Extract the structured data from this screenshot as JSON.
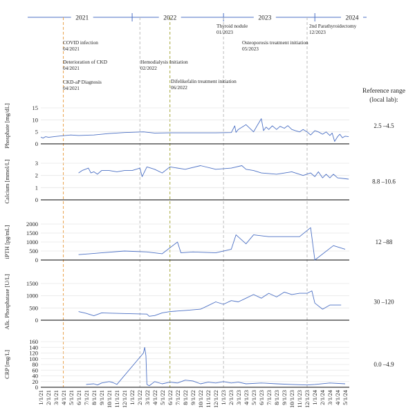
{
  "chart_data": {
    "type": "line",
    "timeline": {
      "years": [
        "2021",
        "2022",
        "2023",
        "2024"
      ],
      "events": [
        {
          "label": "COVID infection",
          "date_label": "04/2021",
          "date": "2021-04-01",
          "color": "#e8a04a",
          "dashed_line": true
        },
        {
          "label": "Deterioration of CKD",
          "date_label": "04/2021",
          "date": "2021-04-01",
          "color": "",
          "dashed_line": false
        },
        {
          "label": "CKD-aP Diagnosis",
          "date_label": "04/2021",
          "date": "2021-04-01",
          "color": "",
          "dashed_line": false
        },
        {
          "label": "Hemodialysis Initiation",
          "date_label": "02/2022",
          "date": "2022-02-01",
          "color": "#bbbbbb",
          "dashed_line": true
        },
        {
          "label": "Difelikefalin treatment initiation",
          "date_label": "06/2022",
          "date": "2022-06-01",
          "color": "#a6a83a",
          "dashed_line": true
        },
        {
          "label": "Thyroid nodule",
          "date_label": "01/2023",
          "date": "2023-01-01",
          "color": "#bbbbbb",
          "dashed_line": true
        },
        {
          "label": "Osteoporosis treatment initiation",
          "date_label": "05/2023",
          "date": "2023-05-01",
          "color": "",
          "dashed_line": false
        },
        {
          "label": "2nd Parathyroidectomy",
          "date_label": "12/2023",
          "date": "2023-12-01",
          "color": "#bbbbbb",
          "dashed_line": true
        }
      ]
    },
    "x_ticks": [
      "1/1/21",
      "2/1/21",
      "3/1/21",
      "4/1/21",
      "5/1/21",
      "6/1/21",
      "7/1/21",
      "8/1/21",
      "9/1/21",
      "10/1/21",
      "11/1/21",
      "12/1/21",
      "1/1/22",
      "2/1/22",
      "3/1/22",
      "4/1/22",
      "5/1/22",
      "6/1/22",
      "7/1/22",
      "8/1/22",
      "9/1/22",
      "10/1/22",
      "11/1/22",
      "12/1/22",
      "1/1/23",
      "2/1/23",
      "3/1/23",
      "4/1/23",
      "5/1/23",
      "6/1/23",
      "7/1/23",
      "8/1/23",
      "9/1/23",
      "10/1/23",
      "11/1/23",
      "12/1/23",
      "1/1/24",
      "2/1/24",
      "3/1/24",
      "4/1/24",
      "5/1/24"
    ],
    "reference_header": "Reference range\n(local lab):",
    "line_color": "#4a6fc4",
    "panels": [
      {
        "ylabel": "Phosphate [mg/dL]",
        "yticks": [
          0,
          5,
          10,
          15
        ],
        "ylim": [
          0,
          15
        ],
        "reference_range": "2.5 –4.5",
        "series": [
          [
            "2021-01-01",
            2.8
          ],
          [
            "2021-01-10",
            2.4
          ],
          [
            "2021-01-20",
            3.0
          ],
          [
            "2021-02-01",
            2.7
          ],
          [
            "2021-02-15",
            2.9
          ],
          [
            "2021-03-01",
            3.1
          ],
          [
            "2021-04-01",
            3.4
          ],
          [
            "2021-05-01",
            3.7
          ],
          [
            "2021-06-01",
            3.5
          ],
          [
            "2021-08-01",
            3.7
          ],
          [
            "2021-10-01",
            4.3
          ],
          [
            "2021-12-01",
            4.7
          ],
          [
            "2022-02-15",
            5.0
          ],
          [
            "2022-04-01",
            4.5
          ],
          [
            "2022-06-01",
            4.6
          ],
          [
            "2022-09-01",
            4.6
          ],
          [
            "2022-12-01",
            4.6
          ],
          [
            "2023-02-01",
            4.7
          ],
          [
            "2023-02-15",
            7.5
          ],
          [
            "2023-02-20",
            4.8
          ],
          [
            "2023-03-01",
            6.0
          ],
          [
            "2023-04-01",
            8.0
          ],
          [
            "2023-05-01",
            5.0
          ],
          [
            "2023-05-15",
            7.5
          ],
          [
            "2023-06-01",
            10.5
          ],
          [
            "2023-06-10",
            5.5
          ],
          [
            "2023-06-20",
            7.0
          ],
          [
            "2023-07-01",
            6.0
          ],
          [
            "2023-07-15",
            7.5
          ],
          [
            "2023-08-01",
            6.0
          ],
          [
            "2023-08-15",
            7.3
          ],
          [
            "2023-09-01",
            6.5
          ],
          [
            "2023-09-15",
            7.6
          ],
          [
            "2023-10-01",
            6.0
          ],
          [
            "2023-10-15",
            5.5
          ],
          [
            "2023-11-01",
            5.0
          ],
          [
            "2023-11-15",
            6.0
          ],
          [
            "2023-12-01",
            5.0
          ],
          [
            "2023-12-15",
            3.7
          ],
          [
            "2024-01-01",
            5.5
          ],
          [
            "2024-01-15",
            5.0
          ],
          [
            "2024-02-01",
            4.0
          ],
          [
            "2024-02-15",
            5.0
          ],
          [
            "2024-03-01",
            3.5
          ],
          [
            "2024-03-10",
            4.5
          ],
          [
            "2024-03-20",
            1.0
          ],
          [
            "2024-04-01",
            3.0
          ],
          [
            "2024-04-10",
            4.0
          ],
          [
            "2024-04-20",
            2.5
          ],
          [
            "2024-05-01",
            3.2
          ],
          [
            "2024-05-15",
            3.0
          ]
        ]
      },
      {
        "ylabel": "Calcium [mmol/L]",
        "yticks": [
          0,
          1,
          2,
          3
        ],
        "ylim": [
          0,
          3
        ],
        "reference_range": "8.8 –10.6",
        "series": [
          [
            "2021-06-01",
            2.2
          ],
          [
            "2021-06-15",
            2.4
          ],
          [
            "2021-07-10",
            2.6
          ],
          [
            "2021-07-20",
            2.2
          ],
          [
            "2021-08-01",
            2.3
          ],
          [
            "2021-08-15",
            2.1
          ],
          [
            "2021-09-01",
            2.4
          ],
          [
            "2021-10-01",
            2.4
          ],
          [
            "2021-11-01",
            2.3
          ],
          [
            "2021-12-01",
            2.4
          ],
          [
            "2022-01-01",
            2.4
          ],
          [
            "2022-02-01",
            2.6
          ],
          [
            "2022-02-10",
            1.9
          ],
          [
            "2022-03-01",
            2.7
          ],
          [
            "2022-04-01",
            2.5
          ],
          [
            "2022-05-01",
            2.2
          ],
          [
            "2022-06-01",
            2.7
          ],
          [
            "2022-08-01",
            2.5
          ],
          [
            "2022-10-01",
            2.8
          ],
          [
            "2022-12-01",
            2.5
          ],
          [
            "2023-02-01",
            2.6
          ],
          [
            "2023-03-15",
            2.8
          ],
          [
            "2023-04-01",
            2.5
          ],
          [
            "2023-05-01",
            2.4
          ],
          [
            "2023-06-01",
            2.2
          ],
          [
            "2023-08-01",
            2.1
          ],
          [
            "2023-10-01",
            2.3
          ],
          [
            "2023-11-15",
            2.0
          ],
          [
            "2023-12-15",
            2.2
          ],
          [
            "2024-01-01",
            1.9
          ],
          [
            "2024-01-15",
            2.3
          ],
          [
            "2024-02-01",
            1.8
          ],
          [
            "2024-02-15",
            2.1
          ],
          [
            "2024-03-01",
            1.8
          ],
          [
            "2024-03-15",
            2.1
          ],
          [
            "2024-04-01",
            1.8
          ],
          [
            "2024-05-15",
            1.7
          ]
        ]
      },
      {
        "ylabel": "iPTH [pg/mL]",
        "yticks": [
          0,
          500,
          1000,
          1500,
          2000
        ],
        "ylim": [
          0,
          2000
        ],
        "reference_range": "12 –88",
        "series": [
          [
            "2021-06-01",
            300
          ],
          [
            "2021-09-01",
            400
          ],
          [
            "2021-12-01",
            500
          ],
          [
            "2022-03-01",
            450
          ],
          [
            "2022-05-01",
            350
          ],
          [
            "2022-07-01",
            1000
          ],
          [
            "2022-07-15",
            400
          ],
          [
            "2022-09-01",
            450
          ],
          [
            "2022-12-01",
            400
          ],
          [
            "2023-02-01",
            600
          ],
          [
            "2023-02-20",
            1400
          ],
          [
            "2023-04-01",
            900
          ],
          [
            "2023-05-01",
            1400
          ],
          [
            "2023-07-01",
            1300
          ],
          [
            "2023-09-01",
            1300
          ],
          [
            "2023-11-01",
            1300
          ],
          [
            "2023-12-15",
            1800
          ],
          [
            "2024-01-01",
            0
          ],
          [
            "2024-03-15",
            800
          ],
          [
            "2024-05-01",
            600
          ]
        ]
      },
      {
        "ylabel": "Alk. Phosphatase [U/L]",
        "yticks": [
          0,
          500,
          1000,
          1500
        ],
        "ylim": [
          0,
          1500
        ],
        "reference_range": "30 –120",
        "series": [
          [
            "2021-06-01",
            350
          ],
          [
            "2021-07-01",
            280
          ],
          [
            "2021-08-01",
            180
          ],
          [
            "2021-09-01",
            300
          ],
          [
            "2021-10-01",
            290
          ],
          [
            "2022-03-01",
            250
          ],
          [
            "2022-03-10",
            160
          ],
          [
            "2022-04-01",
            190
          ],
          [
            "2022-05-01",
            300
          ],
          [
            "2022-06-01",
            350
          ],
          [
            "2022-08-01",
            400
          ],
          [
            "2022-10-01",
            450
          ],
          [
            "2022-11-01",
            600
          ],
          [
            "2022-12-01",
            750
          ],
          [
            "2023-01-01",
            650
          ],
          [
            "2023-02-01",
            800
          ],
          [
            "2023-03-01",
            750
          ],
          [
            "2023-04-01",
            900
          ],
          [
            "2023-05-01",
            1050
          ],
          [
            "2023-06-01",
            900
          ],
          [
            "2023-07-01",
            1100
          ],
          [
            "2023-08-01",
            950
          ],
          [
            "2023-09-01",
            1150
          ],
          [
            "2023-10-01",
            1050
          ],
          [
            "2023-11-01",
            1100
          ],
          [
            "2023-12-01",
            1100
          ],
          [
            "2023-12-20",
            1200
          ],
          [
            "2024-01-01",
            700
          ],
          [
            "2024-02-01",
            450
          ],
          [
            "2024-03-01",
            620
          ],
          [
            "2024-04-15",
            620
          ]
        ]
      },
      {
        "ylabel": "CRP [mg/L]",
        "yticks": [
          0,
          20,
          40,
          60,
          80,
          100,
          120,
          140,
          160
        ],
        "ylim": [
          0,
          160
        ],
        "reference_range": "0.0 –4.9",
        "series": [
          [
            "2021-07-01",
            10
          ],
          [
            "2021-08-01",
            12
          ],
          [
            "2021-08-15",
            8
          ],
          [
            "2021-09-01",
            15
          ],
          [
            "2021-10-01",
            20
          ],
          [
            "2021-10-15",
            17
          ],
          [
            "2021-11-01",
            10
          ],
          [
            "2022-02-15",
            120
          ],
          [
            "2022-02-20",
            140
          ],
          [
            "2022-02-25",
            110
          ],
          [
            "2022-03-01",
            10
          ],
          [
            "2022-03-10",
            5
          ],
          [
            "2022-04-01",
            20
          ],
          [
            "2022-05-01",
            12
          ],
          [
            "2022-06-01",
            18
          ],
          [
            "2022-07-01",
            15
          ],
          [
            "2022-08-01",
            25
          ],
          [
            "2022-09-01",
            22
          ],
          [
            "2022-10-01",
            12
          ],
          [
            "2022-11-01",
            18
          ],
          [
            "2022-12-01",
            15
          ],
          [
            "2023-01-01",
            20
          ],
          [
            "2023-02-01",
            15
          ],
          [
            "2023-03-01",
            18
          ],
          [
            "2023-04-01",
            12
          ],
          [
            "2023-06-01",
            15
          ],
          [
            "2023-08-01",
            12
          ],
          [
            "2023-10-01",
            10
          ],
          [
            "2023-12-01",
            8
          ],
          [
            "2024-01-01",
            10
          ],
          [
            "2024-03-01",
            15
          ],
          [
            "2024-05-01",
            12
          ]
        ]
      }
    ]
  }
}
